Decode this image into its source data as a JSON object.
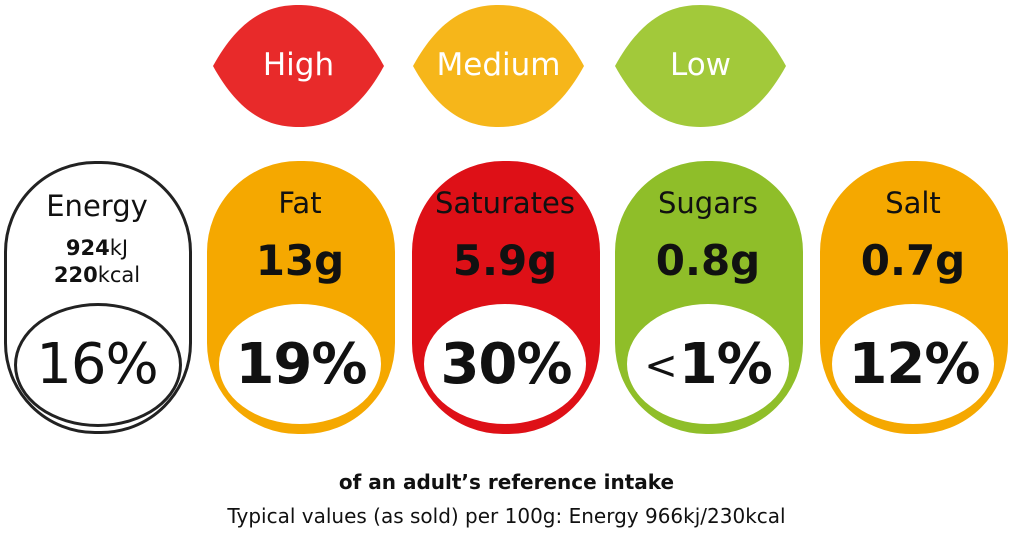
{
  "legend": [
    {
      "label": "High",
      "color": "#E82A2A"
    },
    {
      "label": "Medium",
      "color": "#F6B61A"
    },
    {
      "label": "Low",
      "color": "#A2C93A"
    }
  ],
  "energy": {
    "name": "Energy",
    "kj_value": "924",
    "kj_unit": "kJ",
    "kcal_value": "220",
    "kcal_unit": "kcal",
    "percent": "16%"
  },
  "nutrients": [
    {
      "name": "Fat",
      "amount": "13g",
      "percent": "19%",
      "prefix": "",
      "color": "#F5A800"
    },
    {
      "name": "Saturates",
      "amount": "5.9g",
      "percent": "30%",
      "prefix": "",
      "color": "#DE1017"
    },
    {
      "name": "Sugars",
      "amount": "0.8g",
      "percent": "1%",
      "prefix": "<",
      "color": "#8FBE29"
    },
    {
      "name": "Salt",
      "amount": "0.7g",
      "percent": "12%",
      "prefix": "",
      "color": "#F5A800"
    }
  ],
  "footer": {
    "reference_intake": "of an adult’s reference intake",
    "typical_values": "Typical values (as sold) per 100g: Energy 966kj/230kcal"
  }
}
